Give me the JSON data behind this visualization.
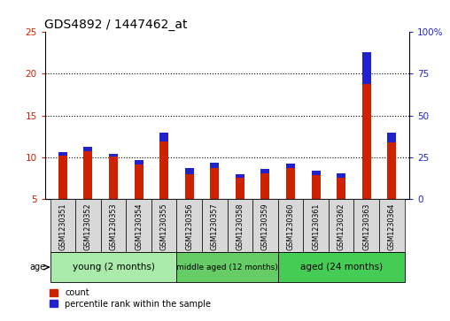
{
  "title": "GDS4892 / 1447462_at",
  "samples": [
    "GSM1230351",
    "GSM1230352",
    "GSM1230353",
    "GSM1230354",
    "GSM1230355",
    "GSM1230356",
    "GSM1230357",
    "GSM1230358",
    "GSM1230359",
    "GSM1230360",
    "GSM1230361",
    "GSM1230362",
    "GSM1230363",
    "GSM1230364"
  ],
  "count_values": [
    10.6,
    11.3,
    10.4,
    9.7,
    12.9,
    8.7,
    9.4,
    8.0,
    8.6,
    9.2,
    8.4,
    8.1,
    22.6,
    13.0
  ],
  "percentile_values": [
    0.35,
    0.6,
    0.3,
    0.55,
    1.0,
    0.7,
    0.7,
    0.5,
    0.5,
    0.5,
    0.5,
    0.5,
    3.8,
    1.2
  ],
  "ylim_left": [
    5,
    25
  ],
  "ylim_right": [
    0,
    100
  ],
  "yticks_left": [
    5,
    10,
    15,
    20,
    25
  ],
  "yticks_right": [
    0,
    25,
    50,
    75,
    100
  ],
  "ytick_labels_right": [
    "0",
    "25",
    "50",
    "75",
    "100%"
  ],
  "groups": [
    {
      "label": "young (2 months)",
      "indices": [
        0,
        1,
        2,
        3,
        4
      ],
      "color": "#aaeaaa"
    },
    {
      "label": "middle aged (12 months)",
      "indices": [
        5,
        6,
        7,
        8
      ],
      "color": "#66cc66"
    },
    {
      "label": "aged (24 months)",
      "indices": [
        9,
        10,
        11,
        12,
        13
      ],
      "color": "#44cc55"
    }
  ],
  "age_label": "age",
  "bar_color_red": "#cc2200",
  "bar_color_blue": "#2222cc",
  "bar_width": 0.35,
  "bg_color": "#d8d8d8",
  "legend_count": "count",
  "legend_pct": "percentile rank within the sample",
  "title_fontsize": 10,
  "tick_label_color_left": "#cc2200",
  "tick_label_color_right": "#2222cc",
  "hgrid_ticks": [
    10,
    15,
    20
  ]
}
